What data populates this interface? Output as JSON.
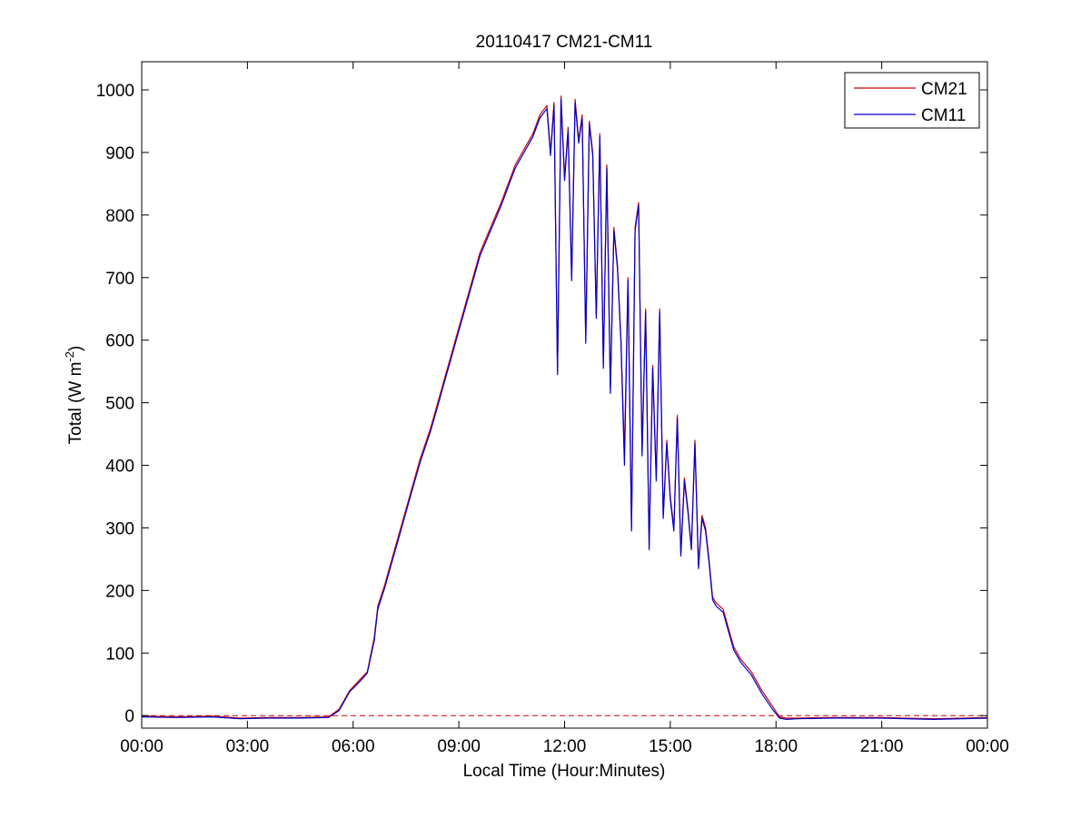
{
  "chart_data": {
    "type": "line",
    "title": "20110417 CM21-CM11",
    "xlabel": "Local Time (Hour:Minutes)",
    "ylabel": {
      "base": "Total (W m",
      "sup": "-2",
      "tail": ")"
    },
    "xlim": [
      0,
      24
    ],
    "ylim": [
      -20,
      1045
    ],
    "x_ticks": [
      0,
      3,
      6,
      9,
      12,
      15,
      18,
      21,
      24
    ],
    "x_tick_labels": [
      "00:00",
      "03:00",
      "06:00",
      "09:00",
      "12:00",
      "15:00",
      "18:00",
      "21:00",
      "00:00"
    ],
    "y_ticks": [
      0,
      100,
      200,
      300,
      400,
      500,
      600,
      700,
      800,
      900,
      1000
    ],
    "y_tick_labels": [
      "0",
      "100",
      "200",
      "300",
      "400",
      "500",
      "600",
      "700",
      "800",
      "900",
      "1000"
    ],
    "grid": false,
    "legend_position": "top-right",
    "reference_line": {
      "y": 0,
      "style": "dashed",
      "color": "#cc0000"
    },
    "series": [
      {
        "name": "CM21",
        "color": "#cc0000",
        "x": [
          0,
          1,
          2,
          2.8,
          3.5,
          4.5,
          5.3,
          5.6,
          5.9,
          6.2,
          6.4,
          6.6,
          6.7,
          6.9,
          7.0,
          7.3,
          7.6,
          7.9,
          8.2,
          8.4,
          8.6,
          8.8,
          9.0,
          9.3,
          9.6,
          9.9,
          10.2,
          10.4,
          10.6,
          10.9,
          11.1,
          11.3,
          11.5,
          11.6,
          11.7,
          11.8,
          11.9,
          12.0,
          12.1,
          12.2,
          12.3,
          12.4,
          12.5,
          12.6,
          12.7,
          12.8,
          12.9,
          13.0,
          13.1,
          13.2,
          13.3,
          13.4,
          13.5,
          13.6,
          13.7,
          13.8,
          13.9,
          14.0,
          14.1,
          14.2,
          14.3,
          14.4,
          14.5,
          14.6,
          14.7,
          14.8,
          14.9,
          15.0,
          15.1,
          15.2,
          15.3,
          15.4,
          15.5,
          15.6,
          15.7,
          15.8,
          15.9,
          16.0,
          16.1,
          16.2,
          16.3,
          16.4,
          16.5,
          16.6,
          16.8,
          17.0,
          17.3,
          17.6,
          17.9,
          18.1,
          18.3,
          18.6,
          19.5,
          21.0,
          22.5,
          24.0
        ],
        "y": [
          -1,
          -2,
          -1,
          -4,
          -3,
          -3,
          -2,
          10,
          40,
          58,
          70,
          125,
          175,
          210,
          230,
          290,
          350,
          410,
          460,
          500,
          540,
          580,
          620,
          680,
          740,
          780,
          820,
          850,
          880,
          910,
          930,
          960,
          975,
          900,
          980,
          550,
          990,
          860,
          940,
          700,
          985,
          920,
          960,
          600,
          950,
          900,
          640,
          930,
          560,
          880,
          520,
          780,
          720,
          600,
          420,
          700,
          300,
          780,
          820,
          420,
          650,
          270,
          560,
          380,
          650,
          320,
          440,
          350,
          300,
          480,
          260,
          380,
          330,
          270,
          440,
          240,
          320,
          300,
          250,
          190,
          180,
          175,
          170,
          150,
          110,
          90,
          70,
          40,
          15,
          -2,
          -4,
          -4,
          -3,
          -3,
          -5,
          -3
        ]
      },
      {
        "name": "CM11",
        "color": "#0000cc",
        "x": [
          0,
          1,
          2,
          2.8,
          3.5,
          4.5,
          5.3,
          5.6,
          5.9,
          6.2,
          6.4,
          6.6,
          6.7,
          6.9,
          7.0,
          7.3,
          7.6,
          7.9,
          8.2,
          8.4,
          8.6,
          8.8,
          9.0,
          9.3,
          9.6,
          9.9,
          10.2,
          10.4,
          10.6,
          10.9,
          11.1,
          11.3,
          11.5,
          11.6,
          11.7,
          11.8,
          11.9,
          12.0,
          12.1,
          12.2,
          12.3,
          12.4,
          12.5,
          12.6,
          12.7,
          12.8,
          12.9,
          13.0,
          13.1,
          13.2,
          13.3,
          13.4,
          13.5,
          13.6,
          13.7,
          13.8,
          13.9,
          14.0,
          14.1,
          14.2,
          14.3,
          14.4,
          14.5,
          14.6,
          14.7,
          14.8,
          14.9,
          15.0,
          15.1,
          15.2,
          15.3,
          15.4,
          15.5,
          15.6,
          15.7,
          15.8,
          15.9,
          16.0,
          16.1,
          16.2,
          16.3,
          16.4,
          16.5,
          16.6,
          16.8,
          17.0,
          17.3,
          17.6,
          17.9,
          18.1,
          18.3,
          18.6,
          19.5,
          21.0,
          22.5,
          24.0
        ],
        "y": [
          -2,
          -3,
          -2,
          -5,
          -4,
          -4,
          -3,
          8,
          38,
          55,
          68,
          120,
          170,
          205,
          225,
          285,
          345,
          405,
          455,
          495,
          535,
          575,
          615,
          675,
          735,
          775,
          815,
          845,
          875,
          905,
          925,
          955,
          970,
          895,
          975,
          545,
          985,
          855,
          935,
          695,
          980,
          915,
          955,
          595,
          945,
          895,
          635,
          925,
          555,
          875,
          515,
          775,
          715,
          595,
          400,
          695,
          295,
          775,
          815,
          415,
          645,
          265,
          555,
          375,
          645,
          315,
          435,
          345,
          295,
          475,
          255,
          375,
          325,
          265,
          435,
          235,
          315,
          295,
          245,
          185,
          175,
          170,
          165,
          145,
          105,
          85,
          65,
          35,
          10,
          -4,
          -6,
          -5,
          -4,
          -4,
          -6,
          -4
        ]
      }
    ]
  }
}
